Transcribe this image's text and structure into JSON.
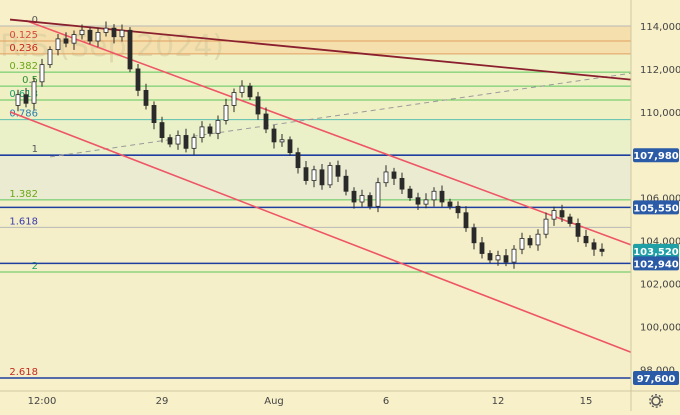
{
  "watermark": "RIS (Sep 2024)",
  "colors": {
    "background": "#f7f0c9",
    "fib_zone_top": "#f5dca8",
    "fib_zone_upper": "#eef0c4",
    "fib_zone_mid": "#e8f0c8",
    "fib_zone_gray": "#e9ead2",
    "fib_zone_lower": "#f3efc8",
    "fib_line_green": "#5cc65c",
    "fib_line_gray": "#b8b8b8",
    "fib_line_teal": "#5bbfae",
    "fib_line_orange": "#e0a060",
    "level_blue": "#1f3fa0",
    "price_badge": "#2b5aa6",
    "current_badge": "#1ea0a6",
    "candles": "#2a2a2a",
    "channel_line": "#ee5566",
    "trend_line": "#8a1f2e",
    "dashed_line": "#9a9a9a",
    "axis_text": "#444444"
  },
  "fib_labels": [
    {
      "text": "0",
      "color": "#555555"
    },
    {
      "text": "0.125",
      "color": "#d44b3c"
    },
    {
      "text": "0.236",
      "color": "#c52a1e"
    },
    {
      "text": "0.382",
      "color": "#6aa818"
    },
    {
      "text": "0.5",
      "color": "#2f8f2f"
    },
    {
      "text": "0.618",
      "color": "#1a9e6e"
    },
    {
      "text": "0.786",
      "color": "#2a7fb0"
    },
    {
      "text": "1",
      "color": "#555555"
    },
    {
      "text": "1.382",
      "color": "#6aa818"
    },
    {
      "text": "1.618",
      "color": "#3a3ab0"
    },
    {
      "text": "2",
      "color": "#1a9e6e"
    },
    {
      "text": "2.618",
      "color": "#c52a1e"
    }
  ],
  "y_tick_labels": [
    "114,000",
    "112,000",
    "110,000",
    "106,000",
    "104,000",
    "102,000",
    "100,000",
    "98,000"
  ],
  "price_badges": [
    "107,980",
    "105,550",
    "103,520",
    "102,940",
    "97,600"
  ],
  "x_tick_labels": [
    "12:00",
    "29",
    "Aug",
    "6",
    "12",
    "15"
  ],
  "settings_icon": "gear-icon",
  "chart_data": {
    "type": "candlestick",
    "title": "RIS (Sep 2024)",
    "y_axis_range": [
      97200,
      114200
    ],
    "x_axis": {
      "ticks": [
        "12:00",
        "29",
        "Aug",
        "6",
        "12",
        "15"
      ],
      "note": "candles visible from late July to mid August"
    },
    "fibonacci_levels": [
      {
        "ratio": "0",
        "price": 114000
      },
      {
        "ratio": "0.125",
        "price": 113300
      },
      {
        "ratio": "0.236",
        "price": 112700
      },
      {
        "ratio": "0.382",
        "price": 111850
      },
      {
        "ratio": "0.5",
        "price": 111200
      },
      {
        "ratio": "0.618",
        "price": 110550
      },
      {
        "ratio": "0.786",
        "price": 109640
      },
      {
        "ratio": "1",
        "price": 107980
      },
      {
        "ratio": "1.382",
        "price": 105900
      },
      {
        "ratio": "1.618",
        "price": 104620
      },
      {
        "ratio": "2",
        "price": 102540
      },
      {
        "ratio": "2.618",
        "price": 97600
      }
    ],
    "horizontal_levels": [
      107980,
      105550,
      102940,
      97600
    ],
    "current_price": 103520,
    "close_path": [
      110300,
      110800,
      110400,
      111400,
      112200,
      112900,
      113400,
      113200,
      113600,
      113800,
      113300,
      113700,
      113900,
      113500,
      113800,
      112000,
      111000,
      110300,
      109500,
      108800,
      108500,
      108900,
      108300,
      108800,
      109300,
      109000,
      109600,
      110300,
      110900,
      111200,
      110700,
      109900,
      109200,
      108600,
      108700,
      108100,
      107400,
      106800,
      107300,
      106600,
      107500,
      107000,
      106300,
      105800,
      106100,
      105600,
      106700,
      107200,
      106900,
      106400,
      106000,
      105700,
      105900,
      106300,
      105800,
      105600,
      105300,
      104600,
      103900,
      103400,
      103100,
      103300,
      103000,
      103600,
      104100,
      103800,
      104300,
      105000,
      105400,
      105100,
      104800,
      104200,
      103900,
      103600,
      103500
    ],
    "trend_lines": [
      {
        "role": "upper channel",
        "from": {
          "x_index": 2,
          "price": 114250
        },
        "to": {
          "x_index": "right edge",
          "price": 103800
        }
      },
      {
        "role": "lower channel",
        "from": {
          "x_index": 0,
          "price": 110000
        },
        "to": {
          "x_index": "right edge",
          "price": 98800
        }
      },
      {
        "role": "long downtrend",
        "from": {
          "x_index": 0,
          "price": 114300
        },
        "to": {
          "x_index": "right edge",
          "price": 111500
        }
      },
      {
        "role": "dashed uptrend",
        "from": {
          "x_index": 5,
          "price": 107900
        },
        "to": {
          "x_index": "right edge",
          "price": 111800
        }
      }
    ]
  }
}
